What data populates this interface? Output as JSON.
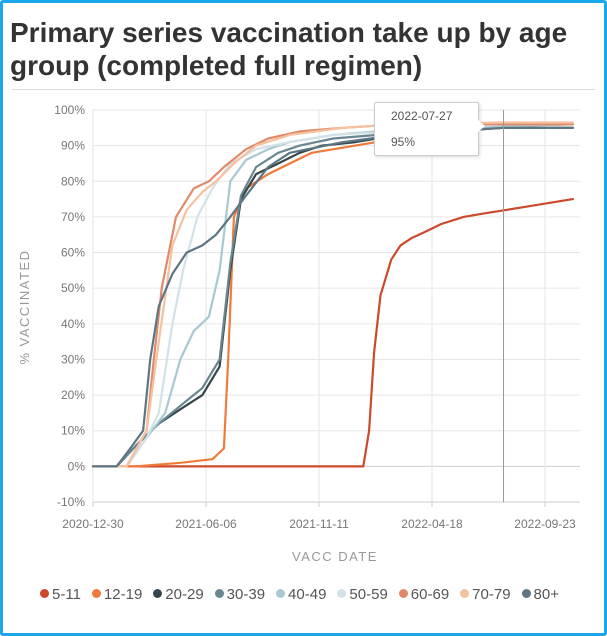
{
  "colors": {
    "frame": "#1aa7ec",
    "crosshair": "#999999"
  },
  "chart_data": {
    "type": "line",
    "title": "Primary series vaccination take up by age group (completed full regimen)",
    "xlabel": "VACC DATE",
    "ylabel": "% VACCINATED",
    "xlim": [
      "2020-12-30",
      "2022-11-01"
    ],
    "ylim": [
      -10,
      100
    ],
    "grid": true,
    "legend_position": "bottom",
    "x_ticks": [
      "2020-12-30",
      "2021-06-06",
      "2021-11-11",
      "2022-04-18",
      "2022-09-23"
    ],
    "y_ticks": [
      -10,
      0,
      10,
      20,
      30,
      40,
      50,
      60,
      70,
      80,
      90,
      100
    ],
    "y_tick_labels": [
      "-10%",
      "0%",
      "10%",
      "20%",
      "30%",
      "40%",
      "50%",
      "60%",
      "70%",
      "80%",
      "90%",
      "100%"
    ],
    "tooltip": {
      "date": "2022-07-27",
      "value": "95%"
    },
    "series": [
      {
        "name": "5-11",
        "color": "#cc4a2c",
        "x": [
          "2020-12-30",
          "2022-01-12",
          "2022-01-20",
          "2022-01-27",
          "2022-02-05",
          "2022-02-20",
          "2022-03-05",
          "2022-03-20",
          "2022-04-10",
          "2022-05-01",
          "2022-06-01",
          "2022-07-01",
          "2022-08-01",
          "2022-09-01",
          "2022-10-01",
          "2022-11-01"
        ],
        "y": [
          0,
          0,
          10,
          32,
          48,
          58,
          62,
          64,
          66,
          68,
          70,
          71,
          72,
          73,
          74,
          75
        ]
      },
      {
        "name": "12-19",
        "color": "#f07a39",
        "x": [
          "2020-12-30",
          "2021-03-01",
          "2021-05-01",
          "2021-06-15",
          "2021-07-01",
          "2021-07-07",
          "2021-07-15",
          "2021-08-01",
          "2021-09-01",
          "2021-10-01",
          "2021-11-01",
          "2022-01-01",
          "2022-03-01",
          "2022-05-01",
          "2022-07-27",
          "2022-11-01"
        ],
        "y": [
          0,
          0,
          1,
          2,
          5,
          30,
          70,
          78,
          82,
          85,
          88,
          90,
          92,
          94,
          95.5,
          96
        ]
      },
      {
        "name": "20-29",
        "color": "#34474c",
        "x": [
          "2020-12-30",
          "2021-02-01",
          "2021-03-01",
          "2021-04-01",
          "2021-05-01",
          "2021-06-01",
          "2021-06-25",
          "2021-07-10",
          "2021-07-25",
          "2021-08-15",
          "2021-09-15",
          "2021-10-15",
          "2021-11-15",
          "2022-01-01",
          "2022-03-01",
          "2022-07-27",
          "2022-11-01"
        ],
        "y": [
          0,
          0,
          6,
          12,
          16,
          20,
          28,
          55,
          75,
          82,
          85,
          88,
          90,
          91,
          93,
          95,
          95
        ]
      },
      {
        "name": "30-39",
        "color": "#6a8690",
        "x": [
          "2020-12-30",
          "2021-02-01",
          "2021-03-01",
          "2021-04-01",
          "2021-05-01",
          "2021-06-01",
          "2021-06-25",
          "2021-07-10",
          "2021-07-25",
          "2021-08-15",
          "2021-09-15",
          "2021-10-15",
          "2021-12-01",
          "2022-02-01",
          "2022-07-27",
          "2022-11-01"
        ],
        "y": [
          0,
          0,
          6,
          12,
          17,
          22,
          30,
          57,
          76,
          84,
          88,
          90,
          92,
          93,
          95,
          95
        ]
      },
      {
        "name": "40-49",
        "color": "#a8c8d2",
        "x": [
          "2020-12-30",
          "2021-02-15",
          "2021-03-15",
          "2021-04-10",
          "2021-05-01",
          "2021-05-20",
          "2021-06-10",
          "2021-06-25",
          "2021-07-10",
          "2021-08-01",
          "2021-09-01",
          "2021-10-01",
          "2021-12-01",
          "2022-02-01",
          "2022-07-27",
          "2022-11-01"
        ],
        "y": [
          0,
          0,
          8,
          15,
          30,
          38,
          42,
          55,
          80,
          86,
          89,
          91,
          93,
          94,
          95.5,
          96
        ]
      },
      {
        "name": "50-59",
        "color": "#d3e2e8",
        "x": [
          "2020-12-30",
          "2021-02-15",
          "2021-03-15",
          "2021-04-01",
          "2021-04-20",
          "2021-05-05",
          "2021-05-25",
          "2021-06-15",
          "2021-07-10",
          "2021-08-15",
          "2021-10-01",
          "2021-12-01",
          "2022-03-01",
          "2022-07-27",
          "2022-11-01"
        ],
        "y": [
          0,
          0,
          8,
          15,
          40,
          55,
          70,
          78,
          85,
          89,
          91,
          93,
          94,
          96,
          96
        ]
      },
      {
        "name": "60-69",
        "color": "#e08a6a",
        "x": [
          "2020-12-30",
          "2021-02-15",
          "2021-03-01",
          "2021-03-15",
          "2021-03-25",
          "2021-04-05",
          "2021-04-25",
          "2021-05-20",
          "2021-06-10",
          "2021-07-01",
          "2021-08-01",
          "2021-09-01",
          "2021-10-15",
          "2021-12-15",
          "2022-03-01",
          "2022-07-27",
          "2022-11-01"
        ],
        "y": [
          0,
          0,
          5,
          10,
          30,
          50,
          70,
          78,
          80,
          84,
          89,
          92,
          94,
          95,
          96,
          96,
          96
        ]
      },
      {
        "name": "70-79",
        "color": "#f5c1a0",
        "x": [
          "2020-12-30",
          "2021-02-15",
          "2021-03-01",
          "2021-03-15",
          "2021-04-01",
          "2021-04-20",
          "2021-05-10",
          "2021-06-01",
          "2021-06-20",
          "2021-07-15",
          "2021-08-15",
          "2021-10-01",
          "2021-12-15",
          "2022-03-01",
          "2022-07-27",
          "2022-11-01"
        ],
        "y": [
          0,
          0,
          5,
          10,
          35,
          62,
          72,
          77,
          80,
          85,
          90,
          93,
          95,
          96,
          96.5,
          96.5
        ]
      },
      {
        "name": "80+",
        "color": "#5d7682",
        "x": [
          "2020-12-30",
          "2021-02-01",
          "2021-02-20",
          "2021-03-10",
          "2021-03-20",
          "2021-04-01",
          "2021-04-20",
          "2021-05-10",
          "2021-06-01",
          "2021-06-20",
          "2021-07-10",
          "2021-08-01",
          "2021-09-01",
          "2021-10-01",
          "2021-12-15",
          "2022-03-01",
          "2022-07-27",
          "2022-11-01"
        ],
        "y": [
          0,
          0,
          5,
          10,
          30,
          45,
          54,
          60,
          62,
          65,
          70,
          76,
          84,
          88,
          91,
          93,
          95,
          95
        ]
      }
    ]
  }
}
